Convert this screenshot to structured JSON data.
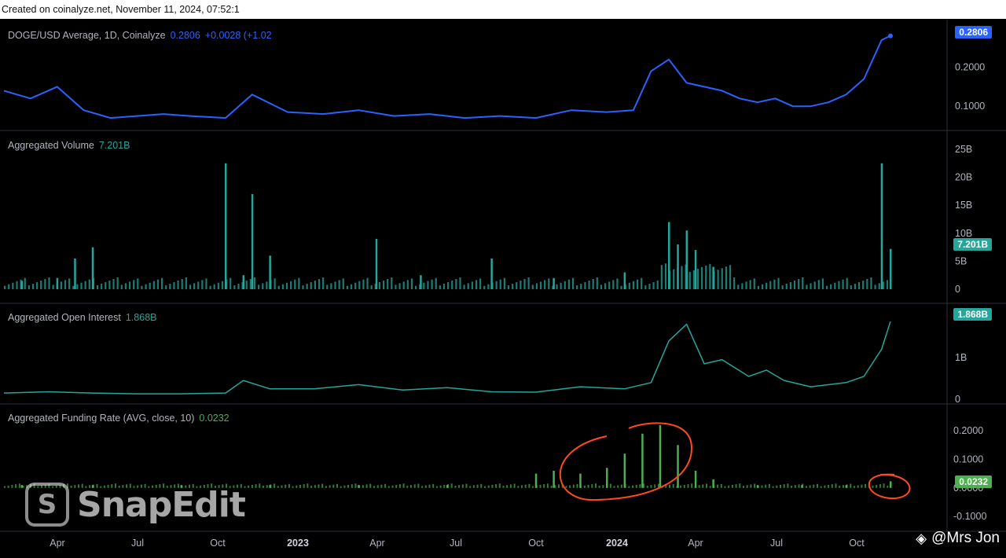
{
  "header": {
    "text": "Created on coinalyze.net, November 11, 2024, 07:52:1"
  },
  "colors": {
    "price": "#2962ff",
    "volume": "#26a69a",
    "oi": "#26a69a",
    "funding": "#4caf50",
    "annot": "#ff4a1c"
  },
  "panes": {
    "price": {
      "title": "DOGE/USD Average, 1D, Coinalyze",
      "value": "0.2806",
      "change": "+0.0028 (+1.02",
      "tag": "0.2806",
      "ticks": [
        "0.2000",
        "0.1000"
      ]
    },
    "volume": {
      "title": "Aggregated Volume",
      "value": "7.201B",
      "tag": "7.201B",
      "ticks": [
        "25B",
        "20B",
        "15B",
        "10B",
        "5B",
        "0"
      ]
    },
    "oi": {
      "title": "Aggregated Open Interest",
      "value": "1.868B",
      "tag": "1.868B",
      "ticks": [
        "1B",
        "0"
      ]
    },
    "funding": {
      "title": "Aggregated Funding Rate (AVG, close, 10)",
      "value": "0.0232",
      "tag": "0.0232",
      "ticks": [
        "0.2000",
        "0.1000",
        "0.0000",
        "-0.1000"
      ]
    }
  },
  "xaxis": {
    "labels": [
      "Apr",
      "Jul",
      "Oct",
      "2023",
      "Apr",
      "Jul",
      "Oct",
      "2024",
      "Apr",
      "Jul",
      "Oct"
    ]
  },
  "watermark": {
    "icon": "S",
    "text": "SnapEdit"
  },
  "credit": {
    "text": "@Mrs Jon"
  },
  "chart_data": [
    {
      "type": "line",
      "title": "DOGE/USD Average, 1D, Coinalyze",
      "x": [
        0,
        0.03,
        0.06,
        0.09,
        0.12,
        0.15,
        0.18,
        0.21,
        0.25,
        0.28,
        0.32,
        0.36,
        0.4,
        0.44,
        0.48,
        0.52,
        0.56,
        0.6,
        0.64,
        0.68,
        0.71,
        0.73,
        0.75,
        0.77,
        0.79,
        0.81,
        0.83,
        0.85,
        0.87,
        0.89,
        0.91,
        0.93,
        0.95,
        0.97,
        0.99,
        1.0
      ],
      "values": [
        0.14,
        0.12,
        0.15,
        0.09,
        0.07,
        0.075,
        0.08,
        0.075,
        0.07,
        0.13,
        0.085,
        0.08,
        0.09,
        0.075,
        0.08,
        0.07,
        0.075,
        0.07,
        0.09,
        0.085,
        0.09,
        0.19,
        0.22,
        0.16,
        0.15,
        0.14,
        0.12,
        0.11,
        0.12,
        0.1,
        0.1,
        0.11,
        0.13,
        0.17,
        0.27,
        0.2806
      ],
      "ylim": [
        0.05,
        0.3
      ]
    },
    {
      "type": "bar",
      "title": "Aggregated Volume",
      "x": [
        0.02,
        0.06,
        0.08,
        0.1,
        0.25,
        0.27,
        0.28,
        0.3,
        0.42,
        0.47,
        0.55,
        0.62,
        0.7,
        0.75,
        0.76,
        0.77,
        0.78,
        0.8,
        0.99,
        1.0
      ],
      "values": [
        1.5,
        2.0,
        5.5,
        7.5,
        22.5,
        2.5,
        17,
        6.0,
        9,
        2.5,
        5.5,
        2.0,
        3.0,
        12,
        8.0,
        10.5,
        7.0,
        4.0,
        22.5,
        7.201
      ],
      "ylim": [
        0,
        25
      ]
    },
    {
      "type": "line",
      "title": "Aggregated Open Interest",
      "x": [
        0,
        0.05,
        0.1,
        0.15,
        0.2,
        0.25,
        0.27,
        0.3,
        0.35,
        0.4,
        0.45,
        0.5,
        0.55,
        0.6,
        0.65,
        0.7,
        0.73,
        0.75,
        0.77,
        0.79,
        0.81,
        0.84,
        0.86,
        0.88,
        0.91,
        0.95,
        0.97,
        0.99,
        1.0
      ],
      "values": [
        0.15,
        0.18,
        0.15,
        0.13,
        0.13,
        0.15,
        0.45,
        0.25,
        0.25,
        0.35,
        0.22,
        0.28,
        0.18,
        0.17,
        0.3,
        0.25,
        0.4,
        1.4,
        1.8,
        0.85,
        0.95,
        0.55,
        0.7,
        0.45,
        0.3,
        0.4,
        0.55,
        1.2,
        1.868
      ],
      "ylim": [
        0,
        2.0
      ]
    },
    {
      "type": "bar",
      "title": "Aggregated Funding Rate (AVG, close, 10)",
      "x": [
        0.02,
        0.1,
        0.2,
        0.3,
        0.4,
        0.5,
        0.6,
        0.62,
        0.65,
        0.68,
        0.7,
        0.72,
        0.74,
        0.76,
        0.78,
        0.8,
        0.85,
        0.9,
        0.95,
        1.0
      ],
      "values": [
        0.01,
        0.01,
        0.01,
        0.01,
        0.01,
        0.01,
        0.05,
        0.06,
        0.05,
        0.07,
        0.12,
        0.19,
        0.22,
        0.15,
        0.06,
        0.03,
        0.01,
        0.01,
        0.01,
        0.0232
      ],
      "ylim": [
        -0.13,
        0.25
      ]
    }
  ]
}
